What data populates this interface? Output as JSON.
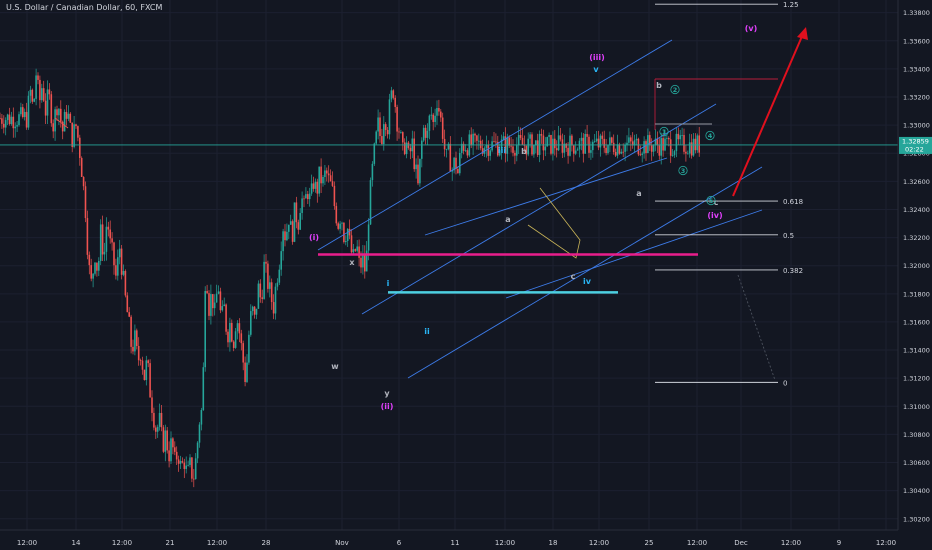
{
  "title": "U.S. Dollar / Canadian Dollar, 60, FXCM",
  "price_tag": {
    "value": "1.32859",
    "countdown": "02:22"
  },
  "chart_data": {
    "type": "candlestick",
    "symbol": "U.S. Dollar / Canadian Dollar",
    "interval": "60",
    "source": "FXCM",
    "y_ticks": [
      "1.33800",
      "1.33600",
      "1.33400",
      "1.33200",
      "1.33000",
      "1.32800",
      "1.32600",
      "1.32400",
      "1.32200",
      "1.32000",
      "1.31800",
      "1.31600",
      "1.31400",
      "1.31200",
      "1.31000",
      "1.30800",
      "1.30600",
      "1.30400",
      "1.30200"
    ],
    "x_ticks": [
      "12:00",
      "14",
      "12:00",
      "21",
      "12:00",
      "28",
      "Nov",
      "6",
      "11",
      "12:00",
      "18",
      "12:00",
      "25",
      "12:00",
      "Dec",
      "12:00",
      "9",
      "12:00"
    ],
    "ylim": [
      1.3012,
      1.3389
    ],
    "last_price": 1.32859,
    "price_path": [
      [
        0,
        1.3305
      ],
      [
        0.02,
        1.3325
      ],
      [
        0.04,
        1.331
      ],
      [
        0.06,
        1.3338
      ],
      [
        0.08,
        1.3315
      ],
      [
        0.1,
        1.333
      ],
      [
        0.12,
        1.331
      ],
      [
        0.14,
        1.3322
      ],
      [
        0.17,
        1.33
      ],
      [
        0.2,
        1.3318
      ],
      [
        0.23,
        1.3295
      ],
      [
        0.26,
        1.3312
      ],
      [
        0.29,
        1.329
      ],
      [
        0.32,
        1.33
      ],
      [
        0.35,
        1.3275
      ],
      [
        0.38,
        1.324
      ],
      [
        0.4,
        1.32
      ],
      [
        0.42,
        1.3185
      ],
      [
        0.44,
        1.321
      ],
      [
        0.46,
        1.3195
      ],
      [
        0.48,
        1.3225
      ],
      [
        0.5,
        1.3205
      ],
      [
        0.52,
        1.3235
      ],
      [
        0.54,
        1.3215
      ],
      [
        0.56,
        1.3205
      ],
      [
        0.58,
        1.319
      ],
      [
        0.6,
        1.3215
      ],
      [
        0.62,
        1.3195
      ],
      [
        0.64,
        1.3175
      ],
      [
        0.66,
        1.316
      ],
      [
        0.68,
        1.314
      ],
      [
        0.7,
        1.3148
      ],
      [
        0.72,
        1.3132
      ],
      [
        0.74,
        1.314
      ],
      [
        0.76,
        1.312
      ],
      [
        0.78,
        1.3132
      ],
      [
        0.8,
        1.311
      ],
      [
        0.82,
        1.3095
      ],
      [
        0.84,
        1.3082
      ],
      [
        0.86,
        1.309
      ],
      [
        0.88,
        1.3072
      ],
      [
        0.9,
        1.308
      ],
      [
        0.92,
        1.3065
      ],
      [
        0.94,
        1.3075
      ],
      [
        0.96,
        1.306
      ],
      [
        0.98,
        1.3068
      ],
      [
        1.0,
        1.3055
      ],
      [
        1.02,
        1.3062
      ],
      [
        1.04,
        1.305
      ],
      [
        1.06,
        1.3058
      ],
      [
        1.08,
        1.3048
      ],
      [
        1.1,
        1.3065
      ],
      [
        1.12,
        1.309
      ],
      [
        1.14,
        1.31
      ],
      [
        1.16,
        1.3205
      ],
      [
        1.18,
        1.317
      ],
      [
        1.2,
        1.318
      ],
      [
        1.22,
        1.3165
      ],
      [
        1.24,
        1.319
      ],
      [
        1.26,
        1.316
      ],
      [
        1.28,
        1.317
      ],
      [
        1.3,
        1.315
      ],
      [
        1.32,
        1.316
      ],
      [
        1.34,
        1.3145
      ],
      [
        1.36,
        1.3165
      ],
      [
        1.38,
        1.3152
      ],
      [
        1.4,
        1.3135
      ],
      [
        1.42,
        1.3118
      ],
      [
        1.44,
        1.315
      ],
      [
        1.46,
        1.317
      ],
      [
        1.48,
        1.316
      ],
      [
        1.5,
        1.3185
      ],
      [
        1.52,
        1.3175
      ],
      [
        1.54,
        1.32
      ],
      [
        1.56,
        1.319
      ],
      [
        1.58,
        1.318
      ],
      [
        1.6,
        1.317
      ],
      [
        1.62,
        1.319
      ],
      [
        1.64,
        1.3205
      ],
      [
        1.66,
        1.323
      ],
      [
        1.68,
        1.322
      ],
      [
        1.7,
        1.3235
      ],
      [
        1.72,
        1.322
      ],
      [
        1.74,
        1.324
      ],
      [
        1.76,
        1.323
      ],
      [
        1.78,
        1.325
      ],
      [
        1.8,
        1.324
      ],
      [
        1.82,
        1.3255
      ],
      [
        1.84,
        1.3245
      ],
      [
        1.86,
        1.326
      ],
      [
        1.88,
        1.3252
      ],
      [
        1.9,
        1.3265
      ],
      [
        1.92,
        1.3258
      ],
      [
        1.94,
        1.3267
      ],
      [
        1.96,
        1.326
      ],
      [
        1.98,
        1.3255
      ],
      [
        2.0,
        1.324
      ],
      [
        2.02,
        1.323
      ],
      [
        2.04,
        1.3238
      ],
      [
        2.06,
        1.322
      ],
      [
        2.08,
        1.3228
      ],
      [
        2.1,
        1.3212
      ],
      [
        2.12,
        1.3205
      ],
      [
        2.14,
        1.3215
      ],
      [
        2.16,
        1.3198
      ],
      [
        2.18,
        1.3205
      ],
      [
        2.2,
        1.3194
      ],
      [
        2.22,
        1.324
      ],
      [
        2.24,
        1.3265
      ],
      [
        2.26,
        1.3285
      ],
      [
        2.28,
        1.33
      ],
      [
        2.3,
        1.3288
      ],
      [
        2.32,
        1.331
      ],
      [
        2.34,
        1.3298
      ],
      [
        2.36,
        1.3318
      ],
      [
        2.38,
        1.3326
      ],
      [
        2.4,
        1.3305
      ],
      [
        2.42,
        1.3295
      ],
      [
        2.44,
        1.328
      ],
      [
        2.46,
        1.329
      ],
      [
        2.48,
        1.3275
      ],
      [
        2.5,
        1.3288
      ],
      [
        2.52,
        1.327
      ],
      [
        2.54,
        1.3255
      ],
      [
        2.56,
        1.3285
      ],
      [
        2.58,
        1.33
      ],
      [
        2.6,
        1.3292
      ],
      [
        2.62,
        1.331
      ],
      [
        2.64,
        1.33
      ],
      [
        2.66,
        1.332
      ],
      [
        2.68,
        1.3308
      ],
      [
        2.7,
        1.3295
      ],
      [
        2.72,
        1.3275
      ],
      [
        2.74,
        1.328
      ],
      [
        2.76,
        1.3268
      ],
      [
        2.78,
        1.3275
      ],
      [
        2.8,
        1.3265
      ],
      [
        2.82,
        1.3286
      ]
    ],
    "labels": [
      {
        "text": "(i)",
        "color": "#e040fb"
      },
      {
        "text": "(ii)",
        "color": "#e040fb"
      },
      {
        "text": "(iii)",
        "color": "#e040fb"
      },
      {
        "text": "(iv)",
        "color": "#e040fb"
      },
      {
        "text": "(v)",
        "color": "#e040fb"
      },
      {
        "text": "i",
        "color": "#29b6f6"
      },
      {
        "text": "ii",
        "color": "#29b6f6"
      },
      {
        "text": "iii",
        "color": "#29b6f6"
      },
      {
        "text": "iv",
        "color": "#29b6f6"
      },
      {
        "text": "v",
        "color": "#29b6f6"
      },
      {
        "text": "x",
        "color": "#b2b5be"
      },
      {
        "text": "w",
        "color": "#b2b5be"
      },
      {
        "text": "y",
        "color": "#b2b5be"
      },
      {
        "text": "a",
        "color": "#b2b5be"
      },
      {
        "text": "b",
        "color": "#b2b5be"
      },
      {
        "text": "c",
        "color": "#b2b5be"
      },
      {
        "text": "a",
        "color": "#b2b5be"
      },
      {
        "text": "b",
        "color": "#b2b5be"
      },
      {
        "text": "c",
        "color": "#b2b5be"
      },
      {
        "text": "1",
        "color": "#26a69a",
        "circled": true
      },
      {
        "text": "2",
        "color": "#26a69a",
        "circled": true
      },
      {
        "text": "3",
        "color": "#26a69a",
        "circled": true
      },
      {
        "text": "4",
        "color": "#26a69a",
        "circled": true
      },
      {
        "text": "5",
        "color": "#26a69a",
        "circled": true
      }
    ],
    "fib_levels": [
      {
        "label": "1.25",
        "price": 1.3386
      },
      {
        "label": "0.618",
        "price": 1.3246
      },
      {
        "label": "0.5",
        "price": 1.3222
      },
      {
        "label": "0.382",
        "price": 1.3197
      },
      {
        "label": "0",
        "price": 1.3117
      }
    ],
    "horizontal_lines": [
      {
        "name": "magenta-level",
        "price": 1.3208,
        "color": "#e91e8c"
      },
      {
        "name": "cyan-level",
        "price": 1.3181,
        "color": "#4dd0e1"
      }
    ],
    "colors": {
      "background": "#131722",
      "up": "#26a69a",
      "down": "#ef5350",
      "grid": "#1c2030",
      "channel": "#3d7be8",
      "arrow": "#e0101e",
      "text": "#d1d4dc"
    }
  }
}
